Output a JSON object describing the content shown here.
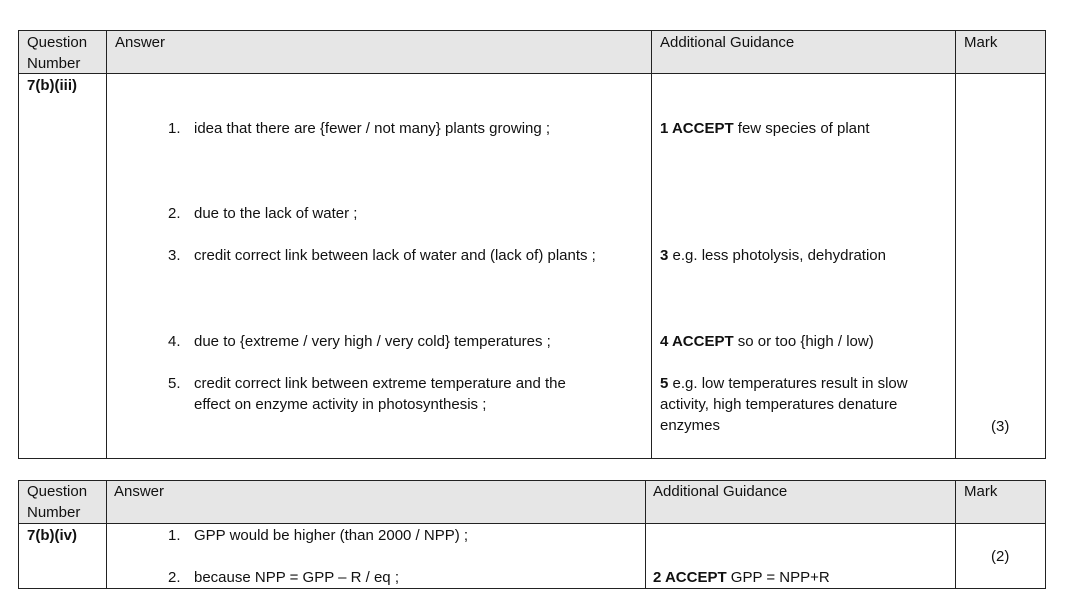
{
  "tables": [
    {
      "headers": {
        "question": "Question Number",
        "question_l1": "Question",
        "question_l2": "Number",
        "answer": "Answer",
        "guidance": "Additional Guidance",
        "mark": "Mark"
      },
      "question": "7(b)(iii)",
      "items": [
        {
          "num": "1.",
          "text": "idea that there are {fewer / not many} plants growing ;"
        },
        {
          "num": "2.",
          "text": "due to the lack of water ;"
        },
        {
          "num": "3.",
          "text": "credit correct link between lack of water and (lack of) plants ;"
        },
        {
          "num": "4.",
          "text": "due to {extreme / very high / very cold} temperatures ;"
        },
        {
          "num": "5.",
          "text_l1": "credit correct link between extreme temperature and the",
          "text_l2": "effect on enzyme activity in photosynthesis ;"
        }
      ],
      "guidance": [
        {
          "bold": "1 ACCEPT",
          "text": " few species of plant"
        },
        {
          "bold": "3",
          "text": " e.g. less photolysis, dehydration"
        },
        {
          "bold": "4 ACCEPT",
          "text": " so or too {high / low)"
        },
        {
          "bold": "5",
          "text_l1": " e.g. low temperatures result in slow",
          "text_l2": "activity, high temperatures denature",
          "text_l3": "enzymes"
        }
      ],
      "mark": "(3)"
    },
    {
      "headers": {
        "question_l1": "Question",
        "question_l2": "Number",
        "answer": "Answer",
        "guidance": "Additional Guidance",
        "mark": "Mark"
      },
      "question": "7(b)(iv)",
      "items": [
        {
          "num": "1.",
          "text": "GPP would be higher (than 2000 / NPP) ;"
        },
        {
          "num": "2.",
          "text": "because NPP = GPP – R / eq ;"
        }
      ],
      "guidance": [
        {
          "bold": "2 ACCEPT",
          "text": " GPP = NPP+R"
        }
      ],
      "mark": "(2)"
    }
  ]
}
